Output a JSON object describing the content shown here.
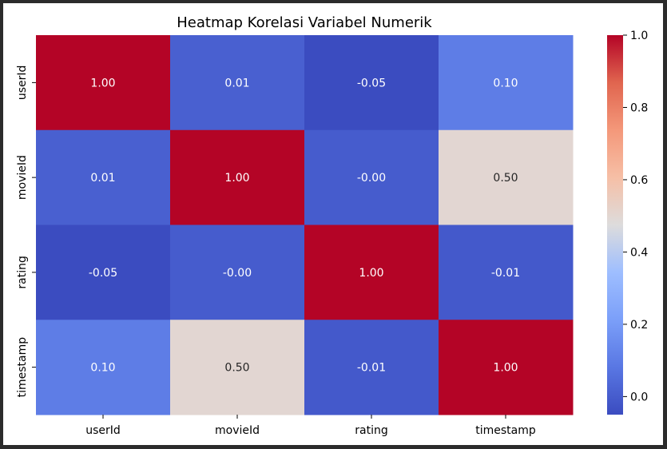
{
  "chart_data": {
    "type": "heatmap",
    "title": "Heatmap Korelasi Variabel Numerik",
    "x_labels": [
      "userId",
      "movieId",
      "rating",
      "timestamp"
    ],
    "y_labels": [
      "userId",
      "movieId",
      "rating",
      "timestamp"
    ],
    "values": [
      [
        1.0,
        0.01,
        -0.05,
        0.1
      ],
      [
        0.01,
        1.0,
        -0.0,
        0.5
      ],
      [
        -0.05,
        -0.0,
        1.0,
        -0.01
      ],
      [
        0.1,
        0.5,
        -0.01,
        1.0
      ]
    ],
    "cell_labels": [
      [
        "1.00",
        "0.01",
        "-0.05",
        "0.10"
      ],
      [
        "0.01",
        "1.00",
        "-0.00",
        "0.50"
      ],
      [
        "-0.05",
        "-0.00",
        "1.00",
        "-0.01"
      ],
      [
        "0.10",
        "0.50",
        "-0.01",
        "1.00"
      ]
    ],
    "colormap": "coolwarm",
    "colorbar": {
      "range": [
        -0.05,
        1.0
      ],
      "ticks": [
        0.0,
        0.2,
        0.4,
        0.6,
        0.8,
        1.0
      ],
      "tick_labels": [
        "0.0",
        "0.2",
        "0.4",
        "0.6",
        "0.8",
        "1.0"
      ]
    },
    "grid": false,
    "colorbar_position": "right"
  }
}
